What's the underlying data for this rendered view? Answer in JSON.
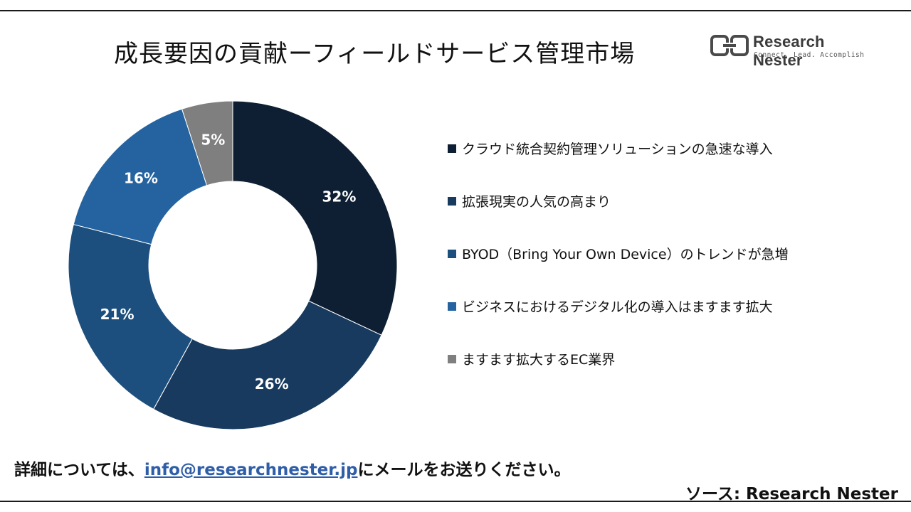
{
  "title": "成長要因の貢献ーフィールドサービス管理市場",
  "logo": {
    "name": "Research Nester",
    "tagline": "Connect. Lead. Accomplish"
  },
  "chart_data": {
    "type": "pie",
    "variant": "donut",
    "title": "成長要因の貢献ーフィールドサービス管理市場",
    "categories": [
      "クラウド統合契約管理ソリューションの急速な導入",
      "拡張現実の人気の高まり",
      "BYOD（Bring Your Own Device）のトレンドが急増",
      "ビジネスにおけるデジタル化の導入はますます拡大",
      "ますます拡大するEC業界"
    ],
    "values": [
      32,
      26,
      21,
      16,
      5
    ],
    "labels": [
      "32%",
      "26%",
      "21%",
      "16%",
      "5%"
    ],
    "colors": [
      "#0e1f33",
      "#173a5e",
      "#1d4f7e",
      "#2563a0",
      "#7f7f7f"
    ],
    "legend": "right"
  },
  "footer": {
    "contact_prefix": "詳細については、",
    "contact_email": "info@researchnester.jp",
    "contact_suffix": "にメールをお送りください。",
    "source": "ソース: Research Nester"
  }
}
